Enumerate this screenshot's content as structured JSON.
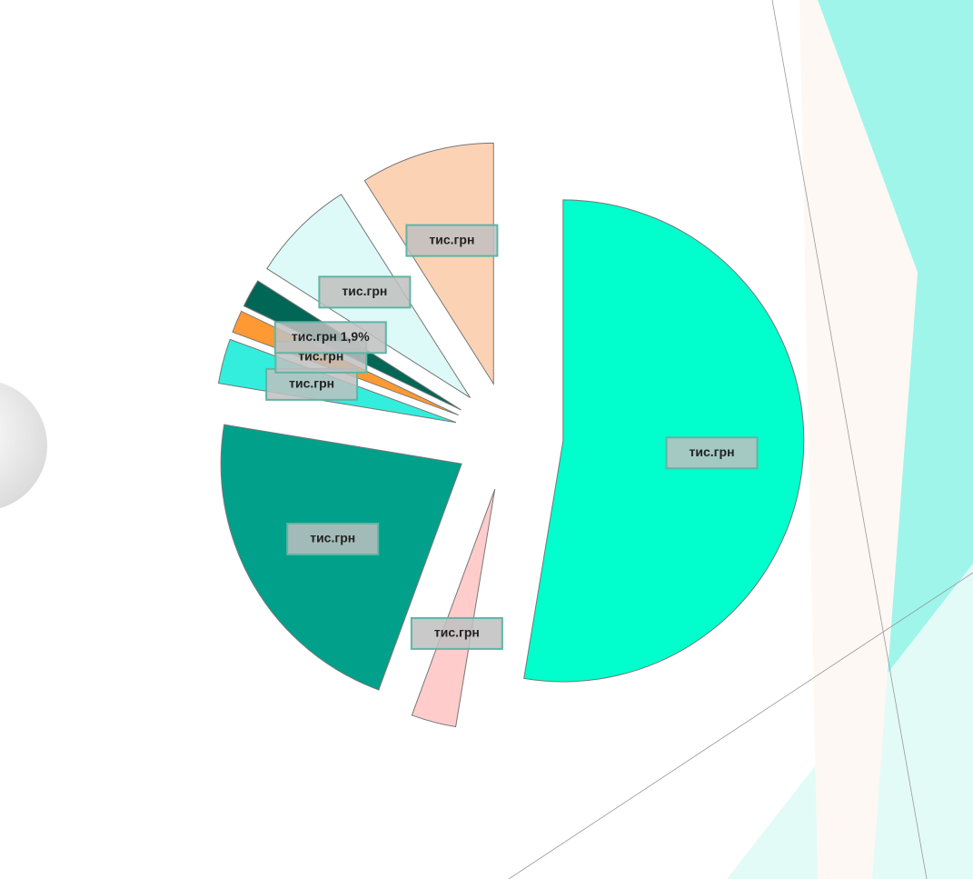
{
  "chart_data": {
    "type": "pie",
    "values": [
      52.6,
      3,
      22,
      3,
      1.5,
      1.9,
      7,
      9
    ],
    "value_labels": [
      "тис.грн",
      "тис.грн",
      "тис.грн",
      "тис.грн",
      "тис.грн",
      "тис.грн 1,9%",
      "тис.грн",
      "тис.грн"
    ],
    "colors": [
      "#00ffcc",
      "#ffcccc",
      "#00a08a",
      "#33eedd",
      "#ff9933",
      "#006655",
      "#ddfaf8",
      "#fcd2b4"
    ]
  }
}
